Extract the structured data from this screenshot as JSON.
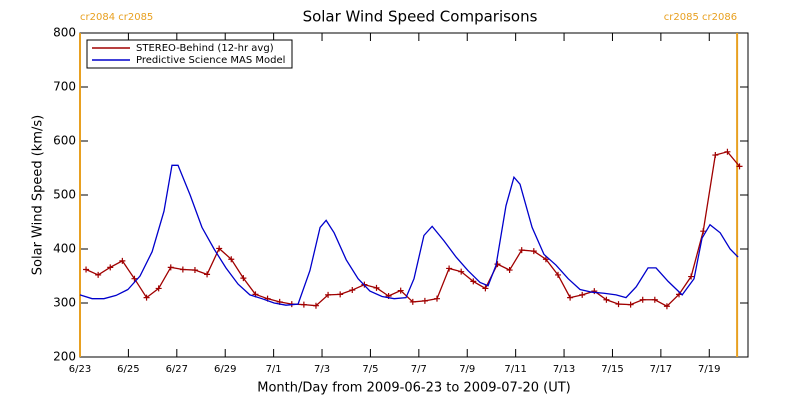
{
  "chart_data": {
    "type": "line",
    "title": "Solar Wind Speed Comparisons",
    "xlabel": "Month/Day from 2009-06-23 to 2009-07-20 (UT)",
    "ylabel": "Solar Wind Speed (km/s)",
    "xlim": [
      0,
      27.6
    ],
    "ylim": [
      200,
      800
    ],
    "yticks": [
      200,
      300,
      400,
      500,
      600,
      700,
      800
    ],
    "xticks": [
      {
        "value": 0,
        "label": "6/23"
      },
      {
        "value": 2,
        "label": "6/25"
      },
      {
        "value": 4,
        "label": "6/27"
      },
      {
        "value": 6,
        "label": "6/29"
      },
      {
        "value": 8,
        "label": "7/1"
      },
      {
        "value": 10,
        "label": "7/3"
      },
      {
        "value": 12,
        "label": "7/5"
      },
      {
        "value": 14,
        "label": "7/7"
      },
      {
        "value": 16,
        "label": "7/9"
      },
      {
        "value": 18,
        "label": "7/11"
      },
      {
        "value": 20,
        "label": "7/13"
      },
      {
        "value": 22,
        "label": "7/15"
      },
      {
        "value": 24,
        "label": "7/17"
      },
      {
        "value": 26,
        "label": "7/19"
      }
    ],
    "legend": "upper left",
    "annotation_color": "#e8a020",
    "annotations": [
      {
        "label": "cr2084 cr2085",
        "x": 0
      },
      {
        "label": "cr2085 cr2086",
        "x": 27.15
      }
    ],
    "series": [
      {
        "name": "STEREO-Behind (12-hr avg)",
        "color": "#a00000",
        "marker": "plus",
        "x": [
          0.25,
          0.75,
          1.25,
          1.75,
          2.25,
          2.75,
          3.25,
          3.75,
          4.25,
          4.75,
          5.25,
          5.75,
          6.25,
          6.75,
          7.25,
          7.75,
          8.25,
          8.75,
          9.25,
          9.75,
          10.25,
          10.75,
          11.25,
          11.75,
          12.25,
          12.75,
          13.25,
          13.75,
          14.25,
          14.75,
          15.25,
          15.75,
          16.25,
          16.75,
          17.25,
          17.75,
          18.25,
          18.75,
          19.25,
          19.75,
          20.25,
          20.75,
          21.25,
          21.75,
          22.25,
          22.75,
          23.25,
          23.75,
          24.25,
          24.75,
          25.25,
          25.75,
          26.25,
          26.75,
          27.25
        ],
        "values": [
          362,
          352,
          366,
          378,
          345,
          310,
          327,
          366,
          362,
          361,
          353,
          401,
          381,
          346,
          316,
          308,
          302,
          298,
          297,
          295,
          315,
          316,
          324,
          334,
          328,
          313,
          323,
          302,
          304,
          308,
          364,
          358,
          340,
          327,
          372,
          361,
          398,
          396,
          381,
          352,
          310,
          315,
          322,
          306,
          298,
          297,
          306,
          306,
          294,
          316,
          349,
          433,
          574,
          580,
          553
        ]
      },
      {
        "name": "Predictive Science MAS Model",
        "color": "#0000cc",
        "marker": "none",
        "x": [
          0,
          0.5,
          0.99,
          1.49,
          1.98,
          2.48,
          2.98,
          3.47,
          3.8,
          4.05,
          4.55,
          5.04,
          5.54,
          6.03,
          6.53,
          7.02,
          7.52,
          8.02,
          8.51,
          9.01,
          9.5,
          9.92,
          10.17,
          10.5,
          11,
          11.49,
          11.98,
          12.48,
          12.98,
          13.47,
          13.8,
          14.21,
          14.55,
          15.04,
          15.54,
          16.03,
          16.53,
          16.86,
          17.19,
          17.6,
          17.93,
          18.18,
          18.68,
          19.17,
          19.67,
          20.17,
          20.66,
          21.16,
          21.65,
          22.15,
          22.56,
          22.98,
          23.47,
          23.8,
          24.3,
          24.88,
          25.37,
          25.7,
          26.03,
          26.45,
          26.86,
          27.19
        ],
        "values": [
          315,
          308,
          308,
          314,
          325,
          350,
          395,
          470,
          555,
          555,
          500,
          440,
          400,
          365,
          335,
          315,
          308,
          300,
          296,
          298,
          360,
          440,
          453,
          430,
          380,
          345,
          322,
          312,
          308,
          310,
          345,
          425,
          442,
          415,
          385,
          360,
          338,
          332,
          370,
          480,
          533,
          520,
          440,
          390,
          370,
          345,
          325,
          320,
          318,
          315,
          310,
          330,
          365,
          365,
          340,
          315,
          345,
          420,
          445,
          430,
          400,
          385
        ]
      }
    ]
  }
}
